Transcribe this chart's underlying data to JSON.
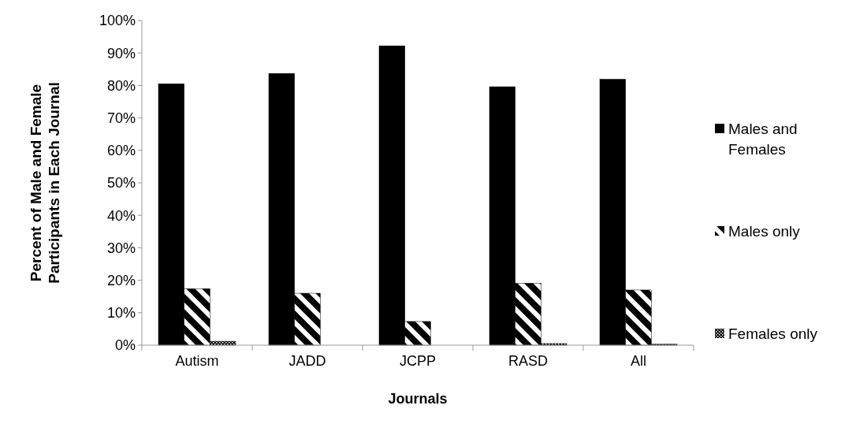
{
  "chart_data": {
    "type": "bar",
    "xlabel": "Journals",
    "ylabel": "Percent of Male and Female Participants in Each Journal",
    "categories": [
      "Autism",
      "JADD",
      "JCPP",
      "RASD",
      "All"
    ],
    "series": [
      {
        "name": "Males and Females",
        "color": "#000000",
        "values": [
          80.5,
          83.7,
          92.2,
          79.6,
          81.9
        ]
      },
      {
        "name": "Males only",
        "color": "#000000",
        "values": [
          17.4,
          16.0,
          7.3,
          19.1,
          17.0
        ]
      },
      {
        "name": "Females only",
        "color": "#000000",
        "values": [
          1.2,
          0,
          0,
          0.5,
          0.3
        ]
      }
    ],
    "ylim": [
      0,
      100
    ],
    "yticks": [
      {
        "value": 0,
        "label": "0%"
      },
      {
        "value": 10,
        "label": "10%"
      },
      {
        "value": 20,
        "label": "20%"
      },
      {
        "value": 30,
        "label": "30%"
      },
      {
        "value": 40,
        "label": "40%"
      },
      {
        "value": 50,
        "label": "50%"
      },
      {
        "value": 60,
        "label": "60%"
      },
      {
        "value": 70,
        "label": "70%"
      },
      {
        "value": 80,
        "label": "80%"
      },
      {
        "value": 90,
        "label": "90%"
      },
      {
        "value": 100,
        "label": "100%"
      }
    ],
    "grid": false,
    "legend": "right"
  }
}
